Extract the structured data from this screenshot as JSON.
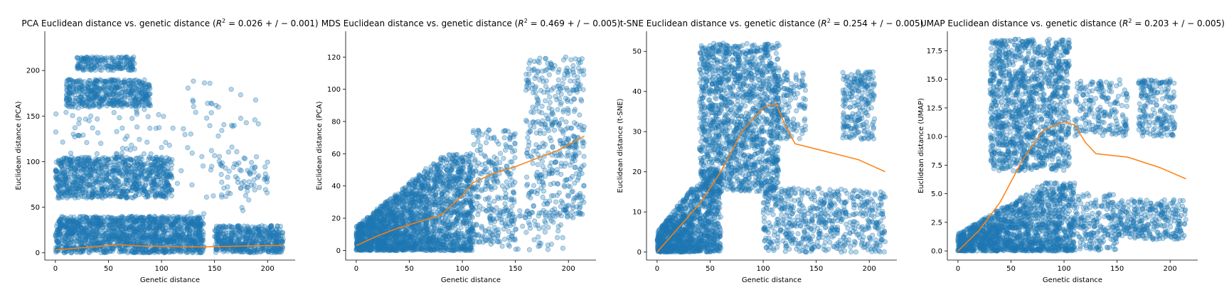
{
  "colors": {
    "points": "#1f77b4",
    "trend": "#ff7f0e"
  },
  "chart_data": [
    {
      "type": "scatter",
      "title": "PCA Euclidean distance vs. genetic distance (",
      "title_r2": "R",
      "title_r2_sup": "2",
      "title_r2_value": " = 0.026 + / − 0.001)",
      "xlabel": "Genetic distance",
      "ylabel": "Euclidean distance (PCA)",
      "xlim": [
        -10,
        226
      ],
      "ylim": [
        -8,
        243
      ],
      "xticks": [
        0,
        50,
        100,
        150,
        200
      ],
      "xtick_labels": [
        "0",
        "50",
        "100",
        "150",
        "200"
      ],
      "yticks": [
        0,
        50,
        100,
        150,
        200
      ],
      "ytick_labels": [
        "0",
        "50",
        "100",
        "150",
        "200"
      ],
      "grid": false,
      "trend": {
        "x": [
          0,
          20,
          40,
          60,
          80,
          100,
          120,
          140,
          160,
          180,
          200,
          215
        ],
        "y": [
          3,
          5,
          7,
          9,
          7.5,
          7,
          6.5,
          6.5,
          7,
          7.5,
          8,
          8
        ]
      },
      "clusters": [
        {
          "x": [
            0,
            140
          ],
          "y": [
            0,
            40
          ],
          "n": 1500
        },
        {
          "x": [
            0,
            110
          ],
          "y": [
            60,
            105
          ],
          "n": 900
        },
        {
          "x": [
            10,
            90
          ],
          "y": [
            160,
            190
          ],
          "n": 500
        },
        {
          "x": [
            20,
            75
          ],
          "y": [
            200,
            215
          ],
          "n": 180
        },
        {
          "x": [
            150,
            215
          ],
          "y": [
            0,
            30
          ],
          "n": 500
        },
        {
          "x": [
            0,
            110
          ],
          "y": [
            105,
            160
          ],
          "n": 60
        },
        {
          "x": [
            110,
            195
          ],
          "y": [
            40,
            195
          ],
          "n": 70
        },
        {
          "x": [
            155,
            200
          ],
          "y": [
            60,
            100
          ],
          "n": 50
        }
      ]
    },
    {
      "type": "scatter",
      "title": "MDS Euclidean distance vs. genetic distance (",
      "title_r2": "R",
      "title_r2_sup": "2",
      "title_r2_value": " = 0.469 + / − 0.005)",
      "xlabel": "Genetic distance",
      "ylabel": "Euclidean distance (PCA)",
      "xlim": [
        -10,
        226
      ],
      "ylim": [
        -6,
        136
      ],
      "xticks": [
        0,
        50,
        100,
        150,
        200
      ],
      "xtick_labels": [
        "0",
        "50",
        "100",
        "150",
        "200"
      ],
      "yticks": [
        0,
        20,
        40,
        60,
        80,
        100,
        120
      ],
      "ytick_labels": [
        "0",
        "20",
        "40",
        "60",
        "80",
        "100",
        "120"
      ],
      "grid": false,
      "trend": {
        "x": [
          0,
          20,
          40,
          60,
          80,
          100,
          110,
          130,
          150,
          170,
          190,
          215
        ],
        "y": [
          3,
          9,
          14,
          18,
          22,
          34,
          42,
          48,
          52,
          57,
          62,
          71
        ]
      },
      "clusters": [
        {
          "x": [
            0,
            110
          ],
          "y": [
            0,
            60
          ],
          "n": 2200,
          "shape": "tri"
        },
        {
          "x": [
            110,
            150
          ],
          "y": [
            5,
            75
          ],
          "n": 250
        },
        {
          "x": [
            160,
            215
          ],
          "y": [
            20,
            120
          ],
          "n": 450
        },
        {
          "x": [
            120,
            195
          ],
          "y": [
            0,
            25
          ],
          "n": 80
        }
      ]
    },
    {
      "type": "scatter",
      "title": "t-SNE Euclidean distance vs. genetic distance (",
      "title_r2": "R",
      "title_r2_sup": "2",
      "title_r2_value": " = 0.254 + / − 0.005)",
      "xlabel": "Genetic distance",
      "ylabel": "Euclidean distance (t-SNE)",
      "xlim": [
        -10,
        226
      ],
      "ylim": [
        -2,
        55
      ],
      "xticks": [
        0,
        50,
        100,
        150,
        200
      ],
      "xtick_labels": [
        "0",
        "50",
        "100",
        "150",
        "200"
      ],
      "yticks": [
        0,
        10,
        20,
        30,
        40,
        50
      ],
      "ytick_labels": [
        "0",
        "10",
        "20",
        "30",
        "40",
        "50"
      ],
      "grid": false,
      "trend": {
        "x": [
          0,
          20,
          40,
          60,
          80,
          100,
          112,
          120,
          130,
          160,
          190,
          215
        ],
        "y": [
          0,
          6,
          12,
          20,
          30,
          36,
          37,
          32,
          27,
          25,
          23,
          20
        ]
      },
      "clusters": [
        {
          "x": [
            0,
            60
          ],
          "y": [
            0,
            20
          ],
          "n": 1200,
          "shape": "tri"
        },
        {
          "x": [
            40,
            115
          ],
          "y": [
            15,
            52
          ],
          "n": 1500
        },
        {
          "x": [
            110,
            140
          ],
          "y": [
            28,
            45
          ],
          "n": 150
        },
        {
          "x": [
            175,
            205
          ],
          "y": [
            28,
            45
          ],
          "n": 220
        },
        {
          "x": [
            100,
            215
          ],
          "y": [
            0,
            16
          ],
          "n": 600
        }
      ]
    },
    {
      "type": "scatter",
      "title": "UMAP Euclidean distance vs. genetic distance (",
      "title_r2": "R",
      "title_r2_sup": "2",
      "title_r2_value": " = 0.203 + / − 0.005)",
      "xlabel": "Genetic distance",
      "ylabel": "Euclidean distance (UMAP)",
      "xlim": [
        -10,
        226
      ],
      "ylim": [
        -0.8,
        19.2
      ],
      "xticks": [
        0,
        50,
        100,
        150,
        200
      ],
      "xtick_labels": [
        "0",
        "50",
        "100",
        "150",
        "200"
      ],
      "yticks": [
        0,
        2.5,
        5,
        7.5,
        10,
        12.5,
        15,
        17.5
      ],
      "ytick_labels": [
        "0.0",
        "2.5",
        "5.0",
        "7.5",
        "10.0",
        "12.5",
        "15.0",
        "17.5"
      ],
      "grid": false,
      "trend": {
        "x": [
          0,
          20,
          40,
          60,
          80,
          100,
          110,
          120,
          130,
          160,
          190,
          215
        ],
        "y": [
          0,
          1.8,
          4.3,
          7.8,
          10.5,
          11.3,
          11.0,
          9.5,
          8.5,
          8.2,
          7.3,
          6.3
        ]
      },
      "clusters": [
        {
          "x": [
            0,
            110
          ],
          "y": [
            0,
            6
          ],
          "n": 1500,
          "shape": "tri"
        },
        {
          "x": [
            30,
            105
          ],
          "y": [
            7,
            18.5
          ],
          "n": 1300
        },
        {
          "x": [
            110,
            160
          ],
          "y": [
            10,
            15
          ],
          "n": 200
        },
        {
          "x": [
            170,
            205
          ],
          "y": [
            10,
            15
          ],
          "n": 200
        },
        {
          "x": [
            150,
            215
          ],
          "y": [
            1,
            4.5
          ],
          "n": 300
        },
        {
          "x": [
            110,
            150
          ],
          "y": [
            0,
            5
          ],
          "n": 200
        }
      ]
    }
  ]
}
